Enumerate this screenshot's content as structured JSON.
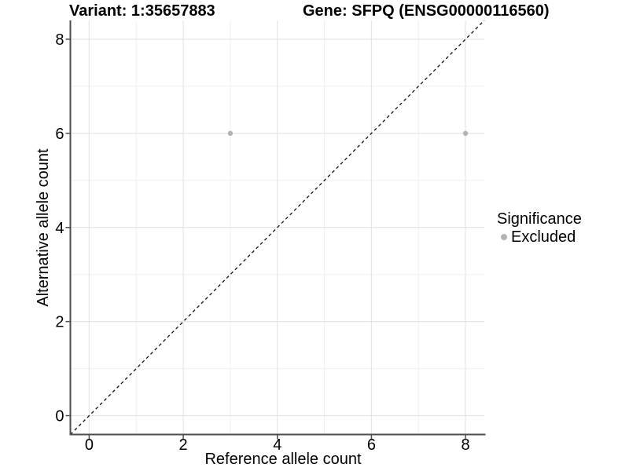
{
  "chart_data": {
    "type": "scatter",
    "title_left": "Variant: 1:35657883",
    "title_right": "Gene: SFPQ (ENSG00000116560)",
    "xlabel": "Reference allele count",
    "ylabel": "Alternative allele count",
    "xlim": [
      -0.4,
      8.4
    ],
    "ylim": [
      -0.4,
      8.4
    ],
    "x_ticks": [
      0,
      2,
      4,
      6,
      8
    ],
    "y_ticks": [
      0,
      2,
      4,
      6,
      8
    ],
    "x_minor_ticks": [
      1,
      3,
      5,
      7
    ],
    "y_minor_ticks": [
      1,
      3,
      5,
      7
    ],
    "grid": true,
    "series": [
      {
        "name": "Excluded",
        "color": "#b3b3b3",
        "points": [
          {
            "x": 3,
            "y": 6
          },
          {
            "x": 8,
            "y": 6
          }
        ]
      }
    ],
    "reference_line": {
      "kind": "identity",
      "style": "dashed",
      "color": "#111111"
    },
    "legend": {
      "title": "Significance",
      "position": "right",
      "entries": [
        {
          "label": "Excluded",
          "color": "#b3b3b3"
        }
      ]
    },
    "style": {
      "background": "#ffffff",
      "axis_line": "#4d4d4d",
      "tick_mark": "#4d4d4d",
      "grid_major": "#e5e5e5",
      "grid_minor": "#efefef",
      "text": "#000000"
    }
  }
}
